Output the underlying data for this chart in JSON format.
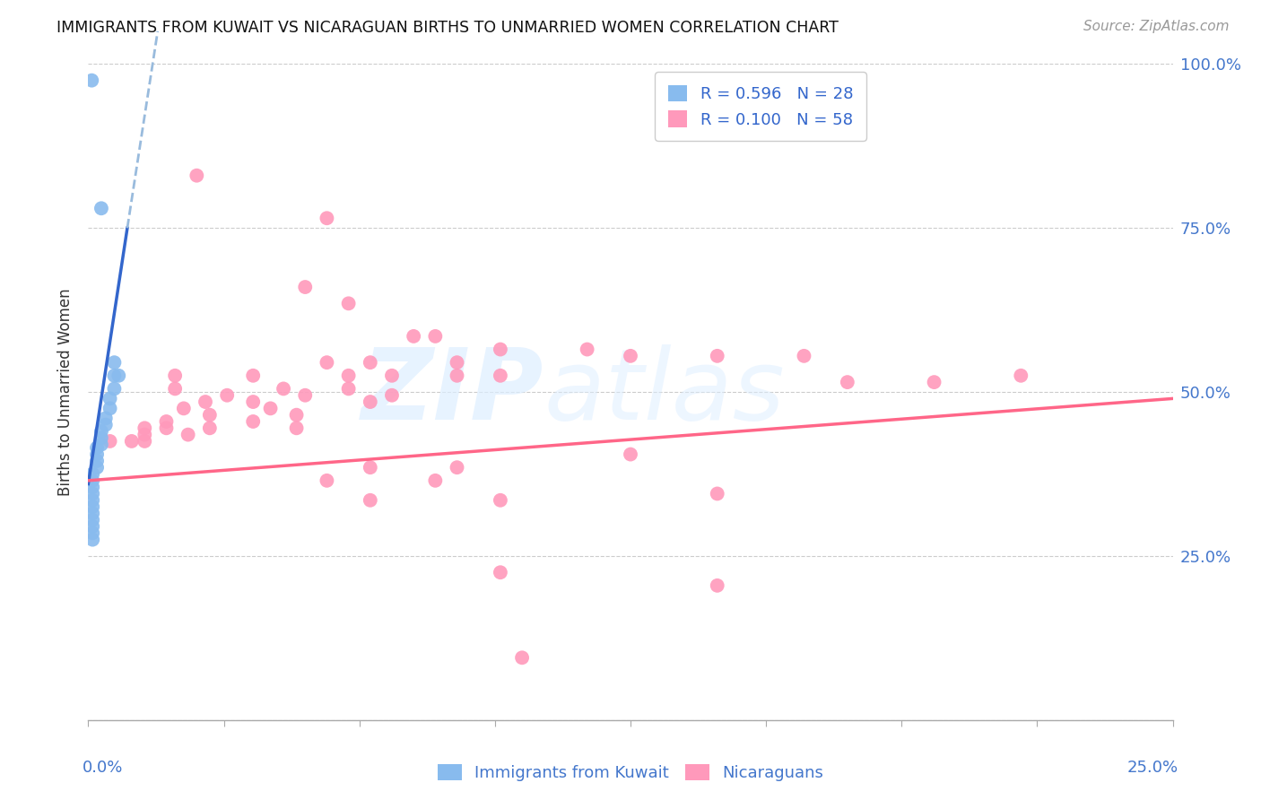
{
  "title": "IMMIGRANTS FROM KUWAIT VS NICARAGUAN BIRTHS TO UNMARRIED WOMEN CORRELATION CHART",
  "source": "Source: ZipAtlas.com",
  "ylabel": "Births to Unmarried Women",
  "color_blue": "#88BBEE",
  "color_pink": "#FF99BB",
  "trendline_blue": "#3366CC",
  "trendline_blue_dashed": "#99BBDD",
  "trendline_pink": "#FF6688",
  "watermark_zip": "ZIP",
  "watermark_atlas": "atlas",
  "blue_dots": [
    [
      0.0008,
      0.975
    ],
    [
      0.003,
      0.78
    ],
    [
      0.006,
      0.545
    ],
    [
      0.006,
      0.525
    ],
    [
      0.007,
      0.525
    ],
    [
      0.006,
      0.505
    ],
    [
      0.005,
      0.49
    ],
    [
      0.005,
      0.475
    ],
    [
      0.004,
      0.46
    ],
    [
      0.004,
      0.45
    ],
    [
      0.003,
      0.44
    ],
    [
      0.003,
      0.43
    ],
    [
      0.003,
      0.42
    ],
    [
      0.002,
      0.415
    ],
    [
      0.002,
      0.405
    ],
    [
      0.002,
      0.395
    ],
    [
      0.002,
      0.385
    ],
    [
      0.001,
      0.375
    ],
    [
      0.001,
      0.365
    ],
    [
      0.001,
      0.355
    ],
    [
      0.001,
      0.345
    ],
    [
      0.001,
      0.335
    ],
    [
      0.001,
      0.325
    ],
    [
      0.001,
      0.315
    ],
    [
      0.001,
      0.305
    ],
    [
      0.001,
      0.295
    ],
    [
      0.001,
      0.285
    ],
    [
      0.001,
      0.275
    ]
  ],
  "pink_dots": [
    [
      0.025,
      0.83
    ],
    [
      0.055,
      0.765
    ],
    [
      0.05,
      0.66
    ],
    [
      0.06,
      0.635
    ],
    [
      0.075,
      0.585
    ],
    [
      0.08,
      0.585
    ],
    [
      0.095,
      0.565
    ],
    [
      0.115,
      0.565
    ],
    [
      0.125,
      0.555
    ],
    [
      0.145,
      0.555
    ],
    [
      0.165,
      0.555
    ],
    [
      0.055,
      0.545
    ],
    [
      0.065,
      0.545
    ],
    [
      0.085,
      0.545
    ],
    [
      0.02,
      0.525
    ],
    [
      0.038,
      0.525
    ],
    [
      0.06,
      0.525
    ],
    [
      0.07,
      0.525
    ],
    [
      0.085,
      0.525
    ],
    [
      0.095,
      0.525
    ],
    [
      0.175,
      0.515
    ],
    [
      0.195,
      0.515
    ],
    [
      0.02,
      0.505
    ],
    [
      0.045,
      0.505
    ],
    [
      0.06,
      0.505
    ],
    [
      0.032,
      0.495
    ],
    [
      0.05,
      0.495
    ],
    [
      0.07,
      0.495
    ],
    [
      0.027,
      0.485
    ],
    [
      0.038,
      0.485
    ],
    [
      0.065,
      0.485
    ],
    [
      0.022,
      0.475
    ],
    [
      0.042,
      0.475
    ],
    [
      0.028,
      0.465
    ],
    [
      0.048,
      0.465
    ],
    [
      0.018,
      0.455
    ],
    [
      0.038,
      0.455
    ],
    [
      0.013,
      0.445
    ],
    [
      0.018,
      0.445
    ],
    [
      0.028,
      0.445
    ],
    [
      0.048,
      0.445
    ],
    [
      0.013,
      0.435
    ],
    [
      0.023,
      0.435
    ],
    [
      0.005,
      0.425
    ],
    [
      0.01,
      0.425
    ],
    [
      0.013,
      0.425
    ],
    [
      0.065,
      0.385
    ],
    [
      0.085,
      0.385
    ],
    [
      0.055,
      0.365
    ],
    [
      0.08,
      0.365
    ],
    [
      0.065,
      0.335
    ],
    [
      0.095,
      0.335
    ],
    [
      0.215,
      0.525
    ],
    [
      0.125,
      0.405
    ],
    [
      0.145,
      0.345
    ],
    [
      0.145,
      0.205
    ],
    [
      0.095,
      0.225
    ],
    [
      0.1,
      0.095
    ]
  ],
  "blue_trendline_solid": [
    [
      0.0,
      0.36
    ],
    [
      0.009,
      0.75
    ]
  ],
  "blue_trendline_dashed": [
    [
      0.009,
      0.75
    ],
    [
      0.016,
      1.05
    ]
  ],
  "pink_trendline": [
    [
      0.0,
      0.365
    ],
    [
      0.25,
      0.49
    ]
  ],
  "xlim": [
    0,
    0.25
  ],
  "ylim": [
    0,
    1.0
  ],
  "yticks": [
    0.0,
    0.25,
    0.5,
    0.75,
    1.0
  ],
  "ytick_labels": [
    "",
    "25.0%",
    "50.0%",
    "75.0%",
    "100.0%"
  ]
}
